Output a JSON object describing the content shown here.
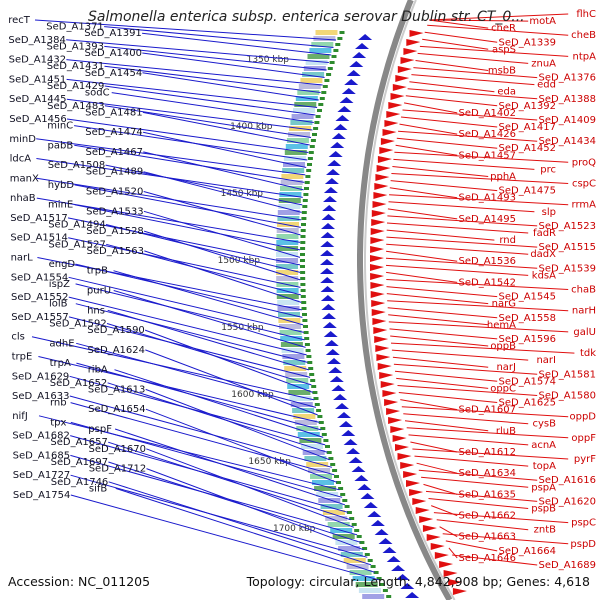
{
  "title": "Salmonella enterica subsp. enterica serovar Dublin str. CT_0...",
  "footer": {
    "accession": "Accession: NC_011205",
    "summary": "Topology: circular; Length: 4,842,908 bp; Genes: 4,618"
  },
  "colors": {
    "left_strand": "#1a1acc",
    "right_strand": "#e01010",
    "backbone": "#888888",
    "gc_marker": "#2e8b2e"
  },
  "positions": [
    "1350 kbp",
    "1400 kbp",
    "1450 kbp",
    "1500 kbp",
    "1550 kbp",
    "1600 kbp",
    "1650 kbp",
    "1700 kbp"
  ],
  "left_genes": [
    "recT",
    "SeD_A1371",
    "SeD_A1391",
    "SeD_A1384",
    "SeD_A1393",
    "SeD_A1400",
    "SeD_A1432",
    "SeD_A1431",
    "SeD_A1454",
    "SeD_A1451",
    "SeD_A1429",
    "sodC",
    "SeD_A1445",
    "SeD_A1483",
    "SeD_A1481",
    "SeD_A1456",
    "minC",
    "SeD_A1474",
    "minD",
    "pabB",
    "SeD_A1467",
    "ldcA",
    "SeD_A1508",
    "SeD_A1489",
    "manX",
    "hybD",
    "SeD_A1520",
    "nhaB",
    "minE",
    "SeD_A1533",
    "SeD_A1517",
    "SeD_A1494",
    "SeD_A1528",
    "SeD_A1514",
    "SeD_A1527",
    "SeD_A1563",
    "narL",
    "engD",
    "trpB",
    "SeD_A1554",
    "ispZ",
    "purU",
    "SeD_A1552",
    "lolB",
    "hns",
    "SeD_A1557",
    "SeD_A1592",
    "SeD_A1590",
    "cls",
    "adhE",
    "SeD_A1624",
    "trpE",
    "trpA",
    "ribA",
    "SeD_A1629",
    "SeD_A1652",
    "SeD_A1613",
    "SeD_A1633",
    "rnb",
    "SeD_A1654",
    "nifJ",
    "tpx",
    "pspF",
    "SeD_A1682",
    "SeD_A1657",
    "SeD_A1670",
    "SeD_A1685",
    "SeD_A1697",
    "SeD_A1712",
    "SeD_A1727",
    "SeD_A1746",
    "sifB",
    "SeD_A1754"
  ],
  "right_genes": [
    "flhC",
    "motA",
    "cheR",
    "cheB",
    "SeD_A1339",
    "aspS",
    "ntpA",
    "znuA",
    "msbB",
    "SeD_A1376",
    "edd",
    "eda",
    "SeD_A1388",
    "SeD_A1392",
    "SeD_A1402",
    "SeD_A1409",
    "SeD_A1417",
    "SeD_A1426",
    "SeD_A1434",
    "SeD_A1452",
    "SeD_A1457",
    "proQ",
    "prc",
    "pphA",
    "cspC",
    "SeD_A1475",
    "SeD_A1493",
    "rrmA",
    "slp",
    "SeD_A1495",
    "SeD_A1523",
    "fadR",
    "rnd",
    "SeD_A1515",
    "dadX",
    "SeD_A1536",
    "SeD_A1539",
    "kdsA",
    "SeD_A1542",
    "chaB",
    "SeD_A1545",
    "narG",
    "narH",
    "SeD_A1558",
    "hemA",
    "galU",
    "SeD_A1596",
    "oppB",
    "tdk",
    "narI",
    "narJ",
    "SeD_A1581",
    "SeD_A1574",
    "oppC",
    "SeD_A1580",
    "SeD_A1625",
    "SeD_A1607",
    "oppD",
    "cysB",
    "rluB",
    "oppF",
    "acnA",
    "SeD_A1612",
    "pyrF",
    "topA",
    "SeD_A1634",
    "SeD_A1616",
    "pspA",
    "SeD_A1635",
    "SeD_A1620",
    "pspB",
    "SeD_A1662",
    "pspC",
    "zntB",
    "SeD_A1663",
    "pspD",
    "SeD_A1664",
    "SeD_A1646",
    "SeD_A1689"
  ]
}
